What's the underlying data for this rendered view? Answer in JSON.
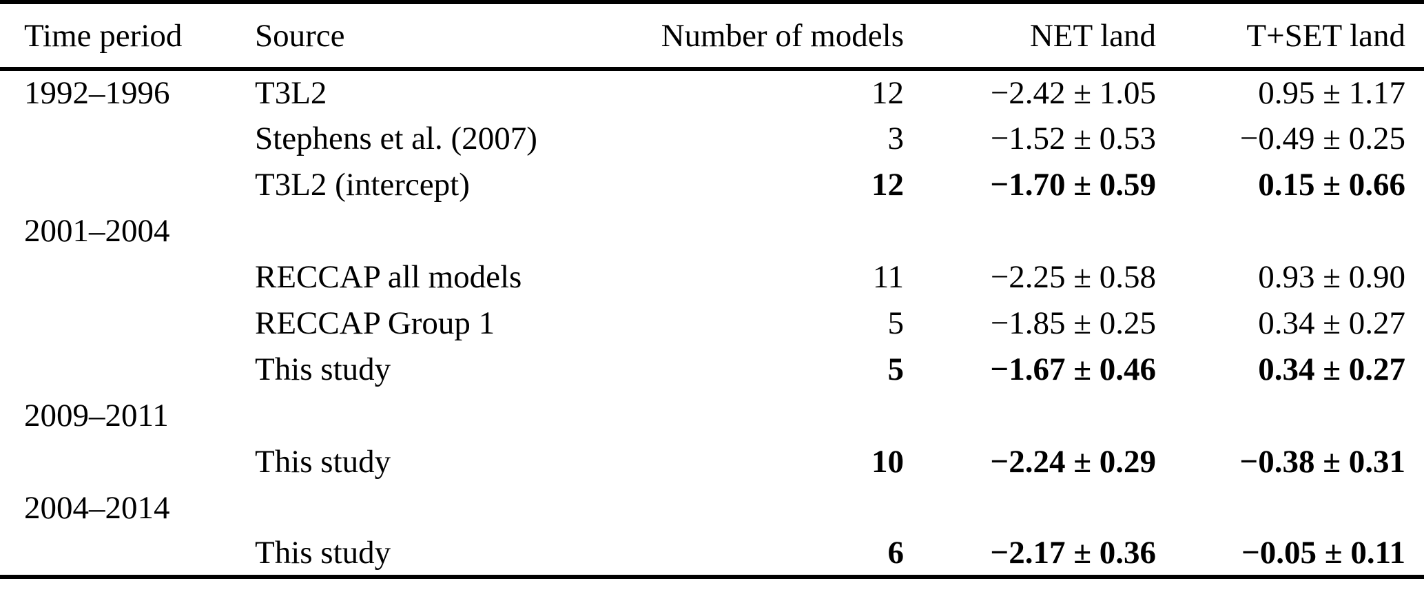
{
  "colors": {
    "text": "#000000",
    "background": "#ffffff",
    "rule": "#000000"
  },
  "table": {
    "headers": [
      {
        "label": "Time period",
        "align": "left"
      },
      {
        "label": "Source",
        "align": "left"
      },
      {
        "label": "Number of models",
        "align": "right"
      },
      {
        "label": "NET land",
        "align": "right"
      },
      {
        "label": "T+SET land",
        "align": "right"
      }
    ],
    "rows": [
      {
        "time_period": "1992–1996",
        "source": "T3L2",
        "n_models": "12",
        "net_land": "−2.42 ± 1.05",
        "tset_land": "0.95 ± 1.17",
        "bold": false
      },
      {
        "time_period": "",
        "source": "Stephens et al. (2007)",
        "n_models": "3",
        "net_land": "−1.52 ± 0.53",
        "tset_land": "−0.49 ± 0.25",
        "bold": false
      },
      {
        "time_period": "",
        "source": "T3L2 (intercept)",
        "n_models": "12",
        "net_land": "−1.70 ± 0.59",
        "tset_land": "0.15 ± 0.66",
        "bold": true
      },
      {
        "time_period": "2001–2004",
        "source": "",
        "n_models": "",
        "net_land": "",
        "tset_land": "",
        "bold": false
      },
      {
        "time_period": "",
        "source": "RECCAP all models",
        "n_models": "11",
        "net_land": "−2.25 ± 0.58",
        "tset_land": "0.93 ± 0.90",
        "bold": false
      },
      {
        "time_period": "",
        "source": "RECCAP Group 1",
        "n_models": "5",
        "net_land": "−1.85 ± 0.25",
        "tset_land": "0.34 ± 0.27",
        "bold": false
      },
      {
        "time_period": "",
        "source": "This study",
        "n_models": "5",
        "net_land": "−1.67 ± 0.46",
        "tset_land": "0.34 ± 0.27",
        "bold": true
      },
      {
        "time_period": "2009–2011",
        "source": "",
        "n_models": "",
        "net_land": "",
        "tset_land": "",
        "bold": false
      },
      {
        "time_period": "",
        "source": "This study",
        "n_models": "10",
        "net_land": "−2.24 ± 0.29",
        "tset_land": "−0.38 ± 0.31",
        "bold": true
      },
      {
        "time_period": "2004–2014",
        "source": "",
        "n_models": "",
        "net_land": "",
        "tset_land": "",
        "bold": false
      },
      {
        "time_period": "",
        "source": "This study",
        "n_models": "6",
        "net_land": "−2.17 ± 0.36",
        "tset_land": "−0.05 ± 0.11",
        "bold": true
      }
    ]
  }
}
